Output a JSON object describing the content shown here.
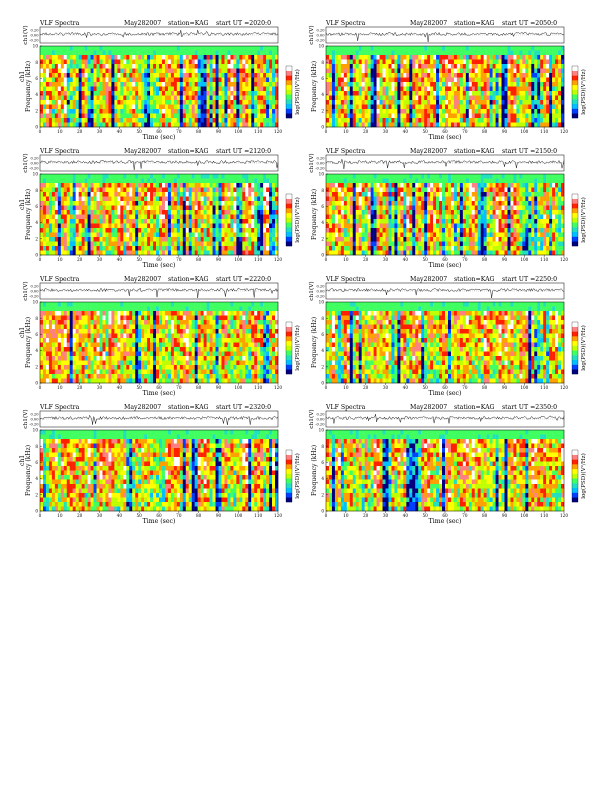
{
  "page": {
    "columns": 2,
    "rows": 4
  },
  "colorbar": {
    "label": "log(PSD)(V²/Hz)",
    "colors": [
      "#000080",
      "#0040ff",
      "#00c0ff",
      "#20e0c0",
      "#40ff60",
      "#c0ff00",
      "#ffff00",
      "#ffa000",
      "#ff2000",
      "#ff8080",
      "#ffffff"
    ]
  },
  "chart_data": [
    {
      "type": "heatmap",
      "heading_left": "VLF Spectra",
      "date": "May282007",
      "station": "station=KAG",
      "start": "start UT =2020:0",
      "waveform": {
        "ylabel": "ch1(V)",
        "yticks": [
          "0.20",
          "0.00",
          "-0.20"
        ]
      },
      "spectrogram": {
        "ylabel": "Frequency (kHz)",
        "channel": "ch1",
        "yticks": [
          "0",
          "2",
          "4",
          "6",
          "8",
          "10"
        ],
        "ylim": [
          0,
          10
        ]
      },
      "x": {
        "label": "Time (sec)",
        "ticks": [
          "0",
          "10",
          "20",
          "30",
          "40",
          "50",
          "60",
          "70",
          "80",
          "90",
          "100",
          "110",
          "120"
        ],
        "lim": [
          0,
          120
        ]
      }
    },
    {
      "type": "heatmap",
      "heading_left": "VLF Spectra",
      "date": "May282007",
      "station": "station=KAG",
      "start": "start UT =2050:0",
      "waveform": {
        "ylabel": "ch1(V)",
        "yticks": [
          "0.20",
          "0.00",
          "-0.20"
        ]
      },
      "spectrogram": {
        "ylabel": "Frequency (kHz)",
        "channel": "",
        "yticks": [
          "0",
          "2",
          "4",
          "6",
          "8",
          "10"
        ],
        "ylim": [
          0,
          10
        ]
      },
      "x": {
        "label": "Time (sec)",
        "ticks": [
          "0",
          "10",
          "20",
          "30",
          "40",
          "50",
          "60",
          "70",
          "80",
          "90",
          "100",
          "110",
          "120"
        ],
        "lim": [
          0,
          120
        ]
      }
    },
    {
      "type": "heatmap",
      "heading_left": "VLF Spectra",
      "date": "May282007",
      "station": "station=KAG",
      "start": "start UT =2120:0",
      "waveform": {
        "ylabel": "ch1(V)",
        "yticks": [
          "0.20",
          "0.00",
          "-0.20"
        ]
      },
      "spectrogram": {
        "ylabel": "Frequency (kHz)",
        "channel": "ch1",
        "yticks": [
          "0",
          "2",
          "4",
          "6",
          "8",
          "10"
        ],
        "ylim": [
          0,
          10
        ]
      },
      "x": {
        "label": "Time (sec)",
        "ticks": [
          "0",
          "10",
          "20",
          "30",
          "40",
          "50",
          "60",
          "70",
          "80",
          "90",
          "100",
          "110",
          "120"
        ],
        "lim": [
          0,
          120
        ]
      }
    },
    {
      "type": "heatmap",
      "heading_left": "VLF Spectra",
      "date": "May282007",
      "station": "station=KAG",
      "start": "start UT =2150:0",
      "waveform": {
        "ylabel": "ch1(V)",
        "yticks": [
          "0.20",
          "0.00",
          "-0.20"
        ]
      },
      "spectrogram": {
        "ylabel": "Frequency (kHz)",
        "channel": "",
        "yticks": [
          "0",
          "2",
          "4",
          "6",
          "8",
          "10"
        ],
        "ylim": [
          0,
          10
        ]
      },
      "x": {
        "label": "Time (sec)",
        "ticks": [
          "0",
          "10",
          "20",
          "30",
          "40",
          "50",
          "60",
          "70",
          "80",
          "90",
          "100",
          "110",
          "120"
        ],
        "lim": [
          0,
          120
        ]
      }
    },
    {
      "type": "heatmap",
      "heading_left": "VLF Spectra",
      "date": "May282007",
      "station": "station=KAG",
      "start": "start UT =2220:0",
      "waveform": {
        "ylabel": "ch1(V)",
        "yticks": [
          "0.20",
          "0.00",
          "-0.20"
        ]
      },
      "spectrogram": {
        "ylabel": "Frequency (kHz)",
        "channel": "ch1",
        "yticks": [
          "0",
          "2",
          "4",
          "6",
          "8",
          "10"
        ],
        "ylim": [
          0,
          10
        ]
      },
      "x": {
        "label": "Time (sec)",
        "ticks": [
          "0",
          "10",
          "20",
          "30",
          "40",
          "50",
          "60",
          "70",
          "80",
          "90",
          "100",
          "110",
          "120"
        ],
        "lim": [
          0,
          120
        ]
      }
    },
    {
      "type": "heatmap",
      "heading_left": "VLF Spectra",
      "date": "May282007",
      "station": "station=KAG",
      "start": "start UT =2250:0",
      "waveform": {
        "ylabel": "ch1(V)",
        "yticks": [
          "0.20",
          "0.00",
          "-0.20"
        ]
      },
      "spectrogram": {
        "ylabel": "Frequency (kHz)",
        "channel": "",
        "yticks": [
          "0",
          "2",
          "4",
          "6",
          "8",
          "10"
        ],
        "ylim": [
          0,
          10
        ]
      },
      "x": {
        "label": "Time (sec)",
        "ticks": [
          "0",
          "10",
          "20",
          "30",
          "40",
          "50",
          "60",
          "70",
          "80",
          "90",
          "100",
          "110",
          "120"
        ],
        "lim": [
          0,
          120
        ]
      }
    },
    {
      "type": "heatmap",
      "heading_left": "VLF Spectra",
      "date": "May282007",
      "station": "station=KAG",
      "start": "start UT =2320:0",
      "waveform": {
        "ylabel": "ch1(V)",
        "yticks": [
          "0.20",
          "0.00",
          "-0.20"
        ]
      },
      "spectrogram": {
        "ylabel": "Frequency (kHz)",
        "channel": "ch1",
        "yticks": [
          "0",
          "2",
          "4",
          "6",
          "8",
          "10"
        ],
        "ylim": [
          0,
          10
        ]
      },
      "x": {
        "label": "Time (sec)",
        "ticks": [
          "0",
          "10",
          "20",
          "30",
          "40",
          "50",
          "60",
          "70",
          "80",
          "90",
          "100",
          "110",
          "120"
        ],
        "lim": [
          0,
          120
        ]
      }
    },
    {
      "type": "heatmap",
      "heading_left": "VLF Spectra",
      "date": "May282007",
      "station": "station=KAG",
      "start": "start UT =2350:0",
      "waveform": {
        "ylabel": "ch1(V)",
        "yticks": [
          "0.20",
          "0.00",
          "-0.20"
        ]
      },
      "spectrogram": {
        "ylabel": "Frequency (kHz)",
        "channel": "",
        "yticks": [
          "0",
          "2",
          "4",
          "6",
          "8",
          "10"
        ],
        "ylim": [
          0,
          10
        ]
      },
      "x": {
        "label": "Time (sec)",
        "ticks": [
          "0",
          "10",
          "20",
          "30",
          "40",
          "50",
          "60",
          "70",
          "80",
          "90",
          "100",
          "110",
          "120"
        ],
        "lim": [
          0,
          120
        ]
      }
    }
  ]
}
